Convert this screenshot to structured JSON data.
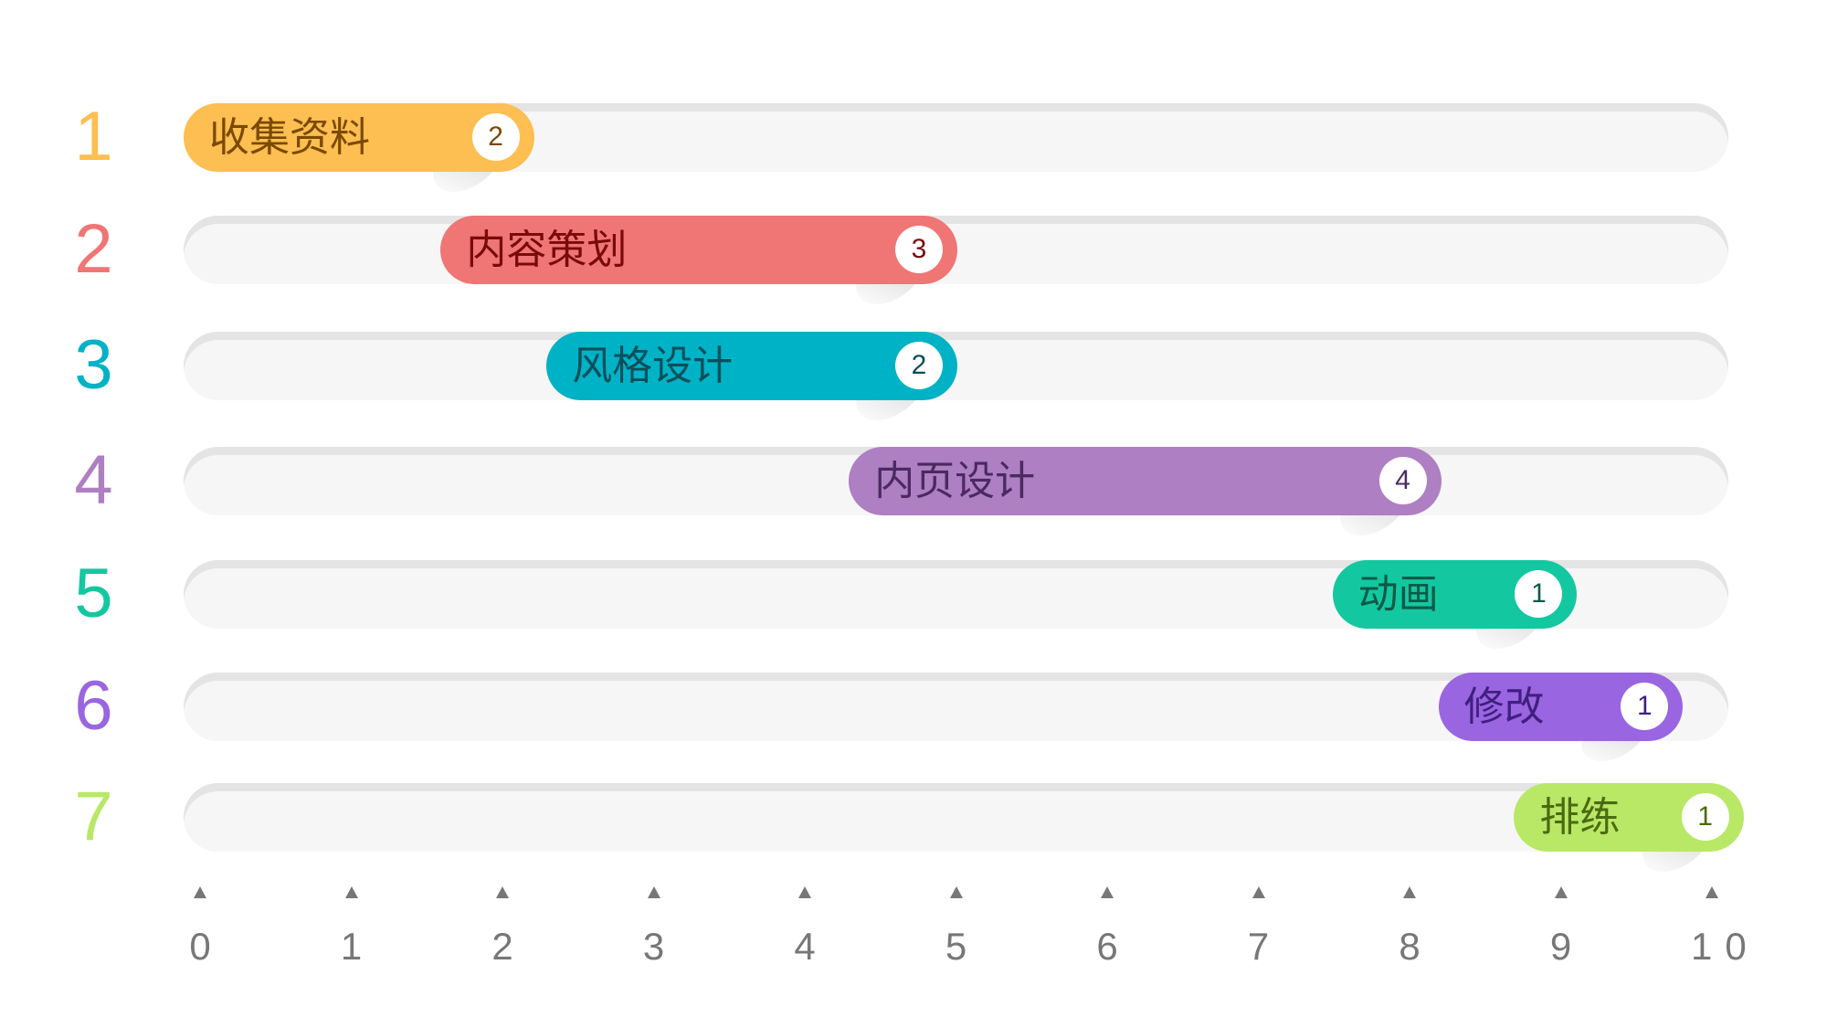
{
  "chart_data": {
    "type": "bar",
    "orientation": "horizontal-gantt",
    "xlim": [
      0,
      10
    ],
    "x_ticks": [
      "0",
      "1",
      "2",
      "3",
      "4",
      "5",
      "6",
      "7",
      "8",
      "9",
      "10"
    ],
    "tasks": [
      {
        "row": "1",
        "label": "收集资料",
        "duration": "2",
        "start": 0,
        "end": 2.1,
        "color": "#FDBE52",
        "text_color": "#7a4a00"
      },
      {
        "row": "2",
        "label": "内容策划",
        "duration": "3",
        "start": 1.7,
        "end": 4.9,
        "color": "#F07575",
        "text_color": "#7a0a0a"
      },
      {
        "row": "3",
        "label": "风格设计",
        "duration": "2",
        "start": 2.4,
        "end": 4.9,
        "color": "#00B2C5",
        "text_color": "#0b4f5a"
      },
      {
        "row": "4",
        "label": "内页设计",
        "duration": "4",
        "start": 4.4,
        "end": 8.1,
        "color": "#AE7FC2",
        "text_color": "#4a2a60"
      },
      {
        "row": "5",
        "label": "动画",
        "duration": "1",
        "start": 7.6,
        "end": 9.0,
        "color": "#13C8A0",
        "text_color": "#0b5a48"
      },
      {
        "row": "6",
        "label": "修改",
        "duration": "1",
        "start": 8.3,
        "end": 9.7,
        "color": "#9A65E0",
        "text_color": "#3f1f80"
      },
      {
        "row": "7",
        "label": "排练",
        "duration": "1",
        "start": 8.8,
        "end": 10.1,
        "color": "#B8E866",
        "text_color": "#4a6a10"
      }
    ],
    "grid": false
  }
}
